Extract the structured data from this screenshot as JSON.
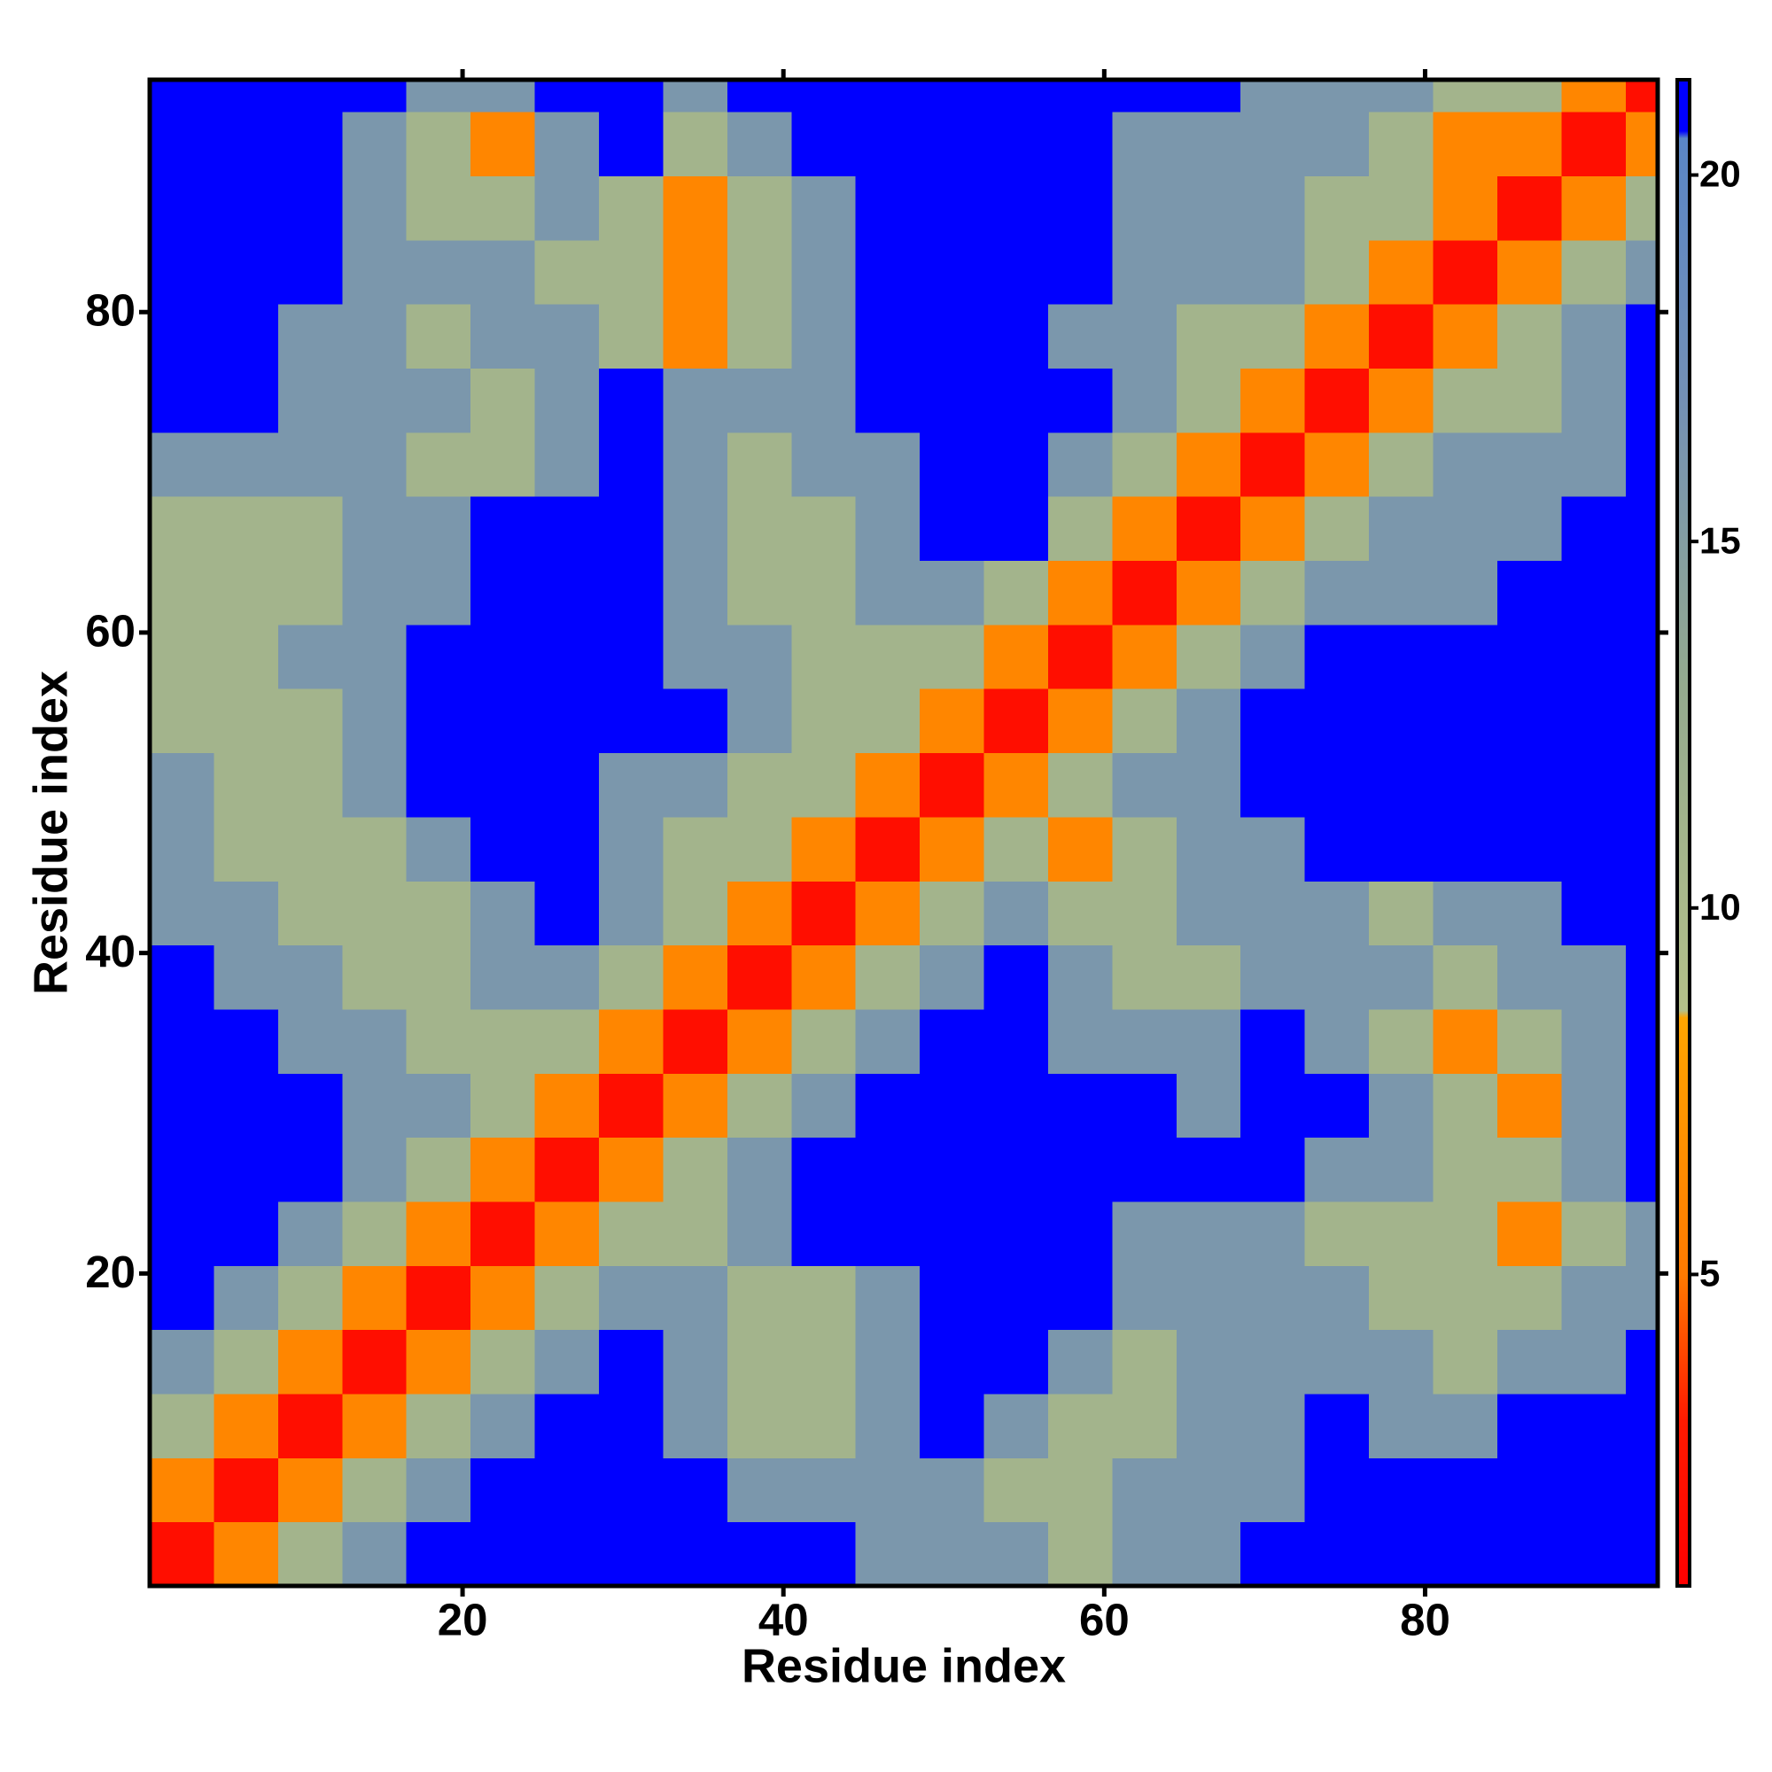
{
  "chart_data": {
    "type": "heatmap",
    "xlabel": "Residue index",
    "ylabel": "Residue index",
    "xlim": [
      0.5,
      94.5
    ],
    "ylim": [
      0.5,
      94.5
    ],
    "xticks": [
      20,
      40,
      60,
      80
    ],
    "yticks": [
      20,
      40,
      60,
      80
    ],
    "xbins": [
      0.5,
      4.5,
      8.5,
      12.5,
      16.5,
      20.5,
      24.5,
      28.5,
      32.5,
      36.5,
      40.5,
      44.5,
      48.5,
      52.5,
      56.5,
      60.5,
      64.5,
      68.5,
      72.5,
      76.5,
      80.5,
      84.5,
      88.5,
      92.5,
      94.5
    ],
    "ybins": [
      0.5,
      4.5,
      8.5,
      12.5,
      16.5,
      20.5,
      24.5,
      28.5,
      32.5,
      36.5,
      40.5,
      44.5,
      48.5,
      52.5,
      56.5,
      60.5,
      64.5,
      68.5,
      72.5,
      76.5,
      80.5,
      84.5,
      88.5,
      92.5,
      94.5
    ],
    "values": [
      [
        2,
        6,
        11,
        16,
        21,
        21,
        21,
        21,
        21,
        21,
        21,
        16,
        16,
        16,
        11,
        16,
        16,
        21,
        21,
        21,
        21,
        21,
        21,
        21
      ],
      [
        6,
        2,
        6,
        11,
        16,
        21,
        21,
        21,
        21,
        16,
        16,
        16,
        16,
        11,
        11,
        16,
        16,
        16,
        21,
        21,
        21,
        21,
        21,
        21
      ],
      [
        11,
        6,
        2,
        6,
        11,
        16,
        21,
        21,
        16,
        11,
        11,
        16,
        21,
        16,
        11,
        11,
        16,
        16,
        21,
        16,
        16,
        21,
        21,
        21
      ],
      [
        16,
        11,
        6,
        2,
        6,
        11,
        16,
        21,
        16,
        11,
        11,
        16,
        21,
        21,
        16,
        11,
        16,
        16,
        16,
        16,
        11,
        16,
        16,
        21
      ],
      [
        21,
        16,
        11,
        6,
        2,
        6,
        11,
        16,
        16,
        11,
        11,
        16,
        21,
        21,
        21,
        16,
        16,
        16,
        16,
        11,
        11,
        11,
        16,
        16
      ],
      [
        21,
        21,
        16,
        11,
        6,
        2,
        6,
        11,
        11,
        16,
        21,
        21,
        21,
        21,
        21,
        16,
        16,
        16,
        11,
        11,
        11,
        6,
        11,
        16
      ],
      [
        21,
        21,
        21,
        16,
        11,
        6,
        2,
        6,
        11,
        16,
        21,
        21,
        21,
        21,
        21,
        21,
        21,
        21,
        16,
        16,
        11,
        11,
        16,
        21
      ],
      [
        21,
        21,
        21,
        16,
        16,
        11,
        6,
        2,
        6,
        11,
        16,
        21,
        21,
        21,
        21,
        21,
        16,
        21,
        21,
        16,
        11,
        6,
        16,
        21
      ],
      [
        21,
        21,
        16,
        16,
        11,
        11,
        11,
        6,
        2,
        6,
        11,
        16,
        21,
        21,
        16,
        16,
        16,
        21,
        16,
        11,
        6,
        11,
        16,
        21
      ],
      [
        21,
        16,
        16,
        11,
        11,
        16,
        16,
        11,
        6,
        2,
        6,
        11,
        16,
        21,
        16,
        11,
        11,
        16,
        16,
        16,
        11,
        16,
        16,
        21
      ],
      [
        16,
        16,
        11,
        11,
        11,
        16,
        21,
        16,
        11,
        6,
        2,
        6,
        11,
        16,
        11,
        11,
        16,
        16,
        16,
        11,
        16,
        16,
        21,
        21
      ],
      [
        16,
        11,
        11,
        11,
        16,
        21,
        21,
        16,
        11,
        11,
        6,
        2,
        6,
        11,
        6,
        11,
        16,
        16,
        21,
        21,
        21,
        21,
        21,
        21
      ],
      [
        16,
        11,
        11,
        16,
        21,
        21,
        21,
        16,
        16,
        11,
        11,
        6,
        2,
        6,
        11,
        16,
        16,
        21,
        21,
        21,
        21,
        21,
        21,
        21
      ],
      [
        11,
        11,
        11,
        16,
        21,
        21,
        21,
        21,
        21,
        16,
        11,
        11,
        6,
        2,
        6,
        11,
        16,
        21,
        21,
        21,
        21,
        21,
        21,
        21
      ],
      [
        11,
        11,
        16,
        16,
        21,
        21,
        21,
        21,
        16,
        16,
        11,
        11,
        11,
        6,
        2,
        6,
        11,
        16,
        21,
        21,
        21,
        21,
        21,
        21
      ],
      [
        11,
        11,
        11,
        16,
        16,
        21,
        21,
        21,
        16,
        11,
        11,
        16,
        16,
        11,
        6,
        2,
        6,
        11,
        16,
        16,
        16,
        21,
        21,
        21
      ],
      [
        11,
        11,
        11,
        16,
        16,
        21,
        21,
        21,
        16,
        11,
        11,
        16,
        21,
        21,
        11,
        6,
        2,
        6,
        11,
        16,
        16,
        16,
        21,
        21
      ],
      [
        16,
        16,
        16,
        16,
        11,
        11,
        16,
        21,
        16,
        11,
        16,
        16,
        21,
        21,
        16,
        11,
        6,
        2,
        6,
        11,
        16,
        16,
        16,
        21
      ],
      [
        21,
        21,
        16,
        16,
        16,
        11,
        16,
        21,
        16,
        16,
        16,
        21,
        21,
        21,
        21,
        16,
        11,
        6,
        2,
        6,
        11,
        11,
        16,
        21
      ],
      [
        21,
        21,
        16,
        16,
        11,
        16,
        16,
        11,
        6,
        11,
        16,
        21,
        21,
        21,
        16,
        16,
        11,
        11,
        6,
        2,
        6,
        11,
        16,
        21
      ],
      [
        21,
        21,
        21,
        16,
        16,
        16,
        11,
        11,
        6,
        11,
        16,
        21,
        21,
        21,
        21,
        16,
        16,
        16,
        11,
        6,
        2,
        6,
        11,
        16
      ],
      [
        21,
        21,
        21,
        16,
        11,
        11,
        16,
        11,
        6,
        11,
        16,
        21,
        21,
        21,
        21,
        16,
        16,
        16,
        11,
        11,
        6,
        2,
        6,
        11
      ],
      [
        21,
        21,
        21,
        16,
        11,
        6,
        16,
        21,
        11,
        16,
        21,
        21,
        21,
        21,
        21,
        16,
        16,
        16,
        16,
        11,
        6,
        6,
        2,
        6
      ],
      [
        21,
        21,
        21,
        21,
        16,
        16,
        21,
        21,
        16,
        21,
        21,
        21,
        21,
        21,
        21,
        21,
        21,
        16,
        16,
        16,
        11,
        11,
        6,
        2
      ]
    ],
    "colorbar": {
      "lim": [
        0.75,
        21.3
      ],
      "ticks": [
        5,
        10,
        15,
        20
      ]
    },
    "colorscale": [
      {
        "value": 0.75,
        "color": "#ff0000"
      },
      {
        "value": 3,
        "color": "#ff1a00"
      },
      {
        "value": 5,
        "color": "#ff7a00"
      },
      {
        "value": 8.5,
        "color": "#ffa500"
      },
      {
        "value": 8.6,
        "color": "#b4c08a"
      },
      {
        "value": 13,
        "color": "#94aa8e"
      },
      {
        "value": 17,
        "color": "#7390b6"
      },
      {
        "value": 20.5,
        "color": "#5a86c6"
      },
      {
        "value": 20.6,
        "color": "#0000ff"
      },
      {
        "value": 21.3,
        "color": "#0000ff"
      }
    ]
  }
}
